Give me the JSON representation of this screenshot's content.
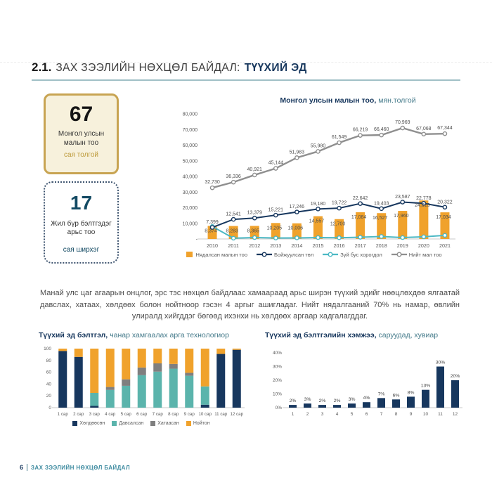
{
  "page": {
    "title_prefix": "2.1.",
    "title_main": "ЗАХ ЗЭЭЛИЙН НӨХЦӨЛ БАЙДАЛ:",
    "title_accent": "ТҮҮХИЙ ЭД",
    "footer_page": "6",
    "footer_text": "ЗАХ ЗЭЭЛИЙН НӨХЦӨЛ БАЙДАЛ"
  },
  "stats": [
    {
      "value": "67",
      "label": "Монгол улсын малын тоо",
      "unit": "сая толгой"
    },
    {
      "value": "17",
      "label": "Жил бүр бэлтгэдэг арьс тоо",
      "unit": "сая ширхэг"
    }
  ],
  "paragraph": "Манай улс цаг агаарын онцлог, эрс тэс нөхцөл байдлаас хамаараад арьс ширэн түүхий эдийг нөөцлөхдөө ялгаатай давслах, хатаах, хөлдөөх болон нойтноор гэсэн 4 аргыг ашигладаг. Нийт нядалгааний 70% нь намар, өвлийн улиралд хийгддэг бөгөөд ихэнхи нь хөлдөөх аргаар хадгалагддаг.",
  "colors": {
    "navy": "#17375E",
    "orange": "#F0A22C",
    "teal": "#5BB4AC",
    "cyan": "#4BB8C4",
    "gray_line": "#8F8F8F",
    "gray_stack": "#7F7F7F",
    "title_teal": "#447A8A",
    "gold": "#BD9A3A"
  },
  "chart_data": [
    {
      "id": "livestock",
      "type": "bar+line combo",
      "title_bold": "Монгол улсын малын тоо,",
      "title_rest": "мян.толгой",
      "categories": [
        "2010",
        "2011",
        "2012",
        "2013",
        "2014",
        "2015",
        "2016",
        "2017",
        "2018",
        "2019",
        "2020",
        "2021"
      ],
      "series": [
        {
          "name": "Нядалсан малын тоо",
          "kind": "bar",
          "color": "#F0A22C",
          "labeled": true,
          "values": [
            8374,
            8283,
            8365,
            10205,
            10006,
            14557,
            12700,
            17084,
            16527,
            17960,
            24615,
            17034
          ]
        },
        {
          "name": "Бойжуулсан төл",
          "kind": "line",
          "color": "#17375E",
          "labeled": true,
          "values": [
            7399,
            12541,
            13379,
            15221,
            17246,
            19180,
            19722,
            22642,
            19403,
            23587,
            22778,
            20322
          ]
        },
        {
          "name": "Зүй бус хорогдол",
          "kind": "line",
          "color": "#4BB8C4",
          "labeled": false,
          "values": [
            8000,
            500,
            900,
            600,
            700,
            900,
            800,
            1100,
            1600,
            900,
            1400,
            2300
          ]
        },
        {
          "name": "Нийт мал тоо",
          "kind": "line",
          "color": "#8F8F8F",
          "labeled": true,
          "values": [
            32730,
            36336,
            40921,
            45144,
            51983,
            55980,
            61549,
            66219,
            66460,
            70969,
            67068,
            67344
          ]
        }
      ],
      "y_ticks": [
        "80,000",
        "70,000",
        "60,000",
        "50,000",
        "40,000",
        "30,000",
        "20,000",
        "10,000",
        "-"
      ],
      "ylim": [
        0,
        80000
      ],
      "grid": false,
      "legend_position": "bottom"
    },
    {
      "id": "prep-method",
      "type": "stacked-bar",
      "title_bold": "Түүхий эд бэлтгэл,",
      "title_rest": "чанар хамгаалах арга технологиор",
      "categories": [
        "1 сар",
        "2 сар",
        "3 сар",
        "4 сар",
        "5 сар",
        "6 сар",
        "7 сар",
        "8 сар",
        "9 сар",
        "10 сар",
        "11 сар",
        "12 сар"
      ],
      "series": [
        {
          "name": "Хөлдөөсөн",
          "color": "#17375E",
          "values": [
            96,
            86,
            3,
            0,
            0,
            0,
            0,
            0,
            0,
            5,
            91,
            98
          ]
        },
        {
          "name": "Давсалсан",
          "color": "#5BB4AC",
          "values": [
            0,
            0,
            22,
            30,
            37,
            55,
            61,
            66,
            54,
            31,
            0,
            0
          ]
        },
        {
          "name": "Хатаасан",
          "color": "#7F7F7F",
          "values": [
            0,
            0,
            0,
            5,
            11,
            13,
            14,
            8,
            5,
            0,
            0,
            0
          ]
        },
        {
          "name": "Нойтон",
          "color": "#F0A22C",
          "values": [
            4,
            14,
            75,
            65,
            52,
            32,
            25,
            26,
            41,
            64,
            9,
            2
          ]
        }
      ],
      "y_ticks": [
        0,
        20,
        40,
        60,
        80,
        100
      ],
      "ylim": [
        0,
        100
      ],
      "grid": false,
      "legend_position": "bottom"
    },
    {
      "id": "prep-volume",
      "type": "bar",
      "title_bold": "Түүхий эд бэлтгэлийн хэмжээ,",
      "title_rest": "саруудад, хувиар",
      "categories": [
        "1",
        "2",
        "3",
        "4",
        "5",
        "6",
        "7",
        "8",
        "9",
        "10",
        "11",
        "12"
      ],
      "values": [
        2,
        3,
        2,
        2,
        3,
        4,
        7,
        6,
        8,
        13,
        30,
        20
      ],
      "labels": [
        "2%",
        "3%",
        "2%",
        "2%",
        "3%",
        "4%",
        "7%",
        "6%",
        "8%",
        "13%",
        "30%",
        "20%"
      ],
      "y_ticks": [
        "40%",
        "30%",
        "20%",
        "10%",
        "0%"
      ],
      "ylim": [
        0,
        40
      ],
      "grid": false,
      "color": "#17375E"
    }
  ]
}
